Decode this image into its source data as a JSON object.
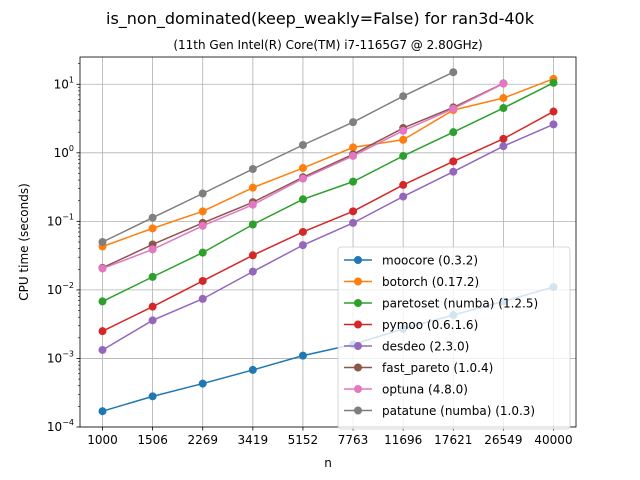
{
  "chart_data": {
    "type": "line",
    "title": "is_non_dominated(keep_weakly=False) for ran3d-40k",
    "subtitle": "(11th Gen Intel(R) Core(TM) i7-1165G7 @ 2.80GHz)",
    "xlabel": "n",
    "ylabel": "CPU time (seconds)",
    "yscale": "log",
    "ylim": [
      0.0001,
      25
    ],
    "y_ticks": [
      {
        "value": 0.0001,
        "base": "10",
        "exp": "−4"
      },
      {
        "value": 0.001,
        "base": "10",
        "exp": "−3"
      },
      {
        "value": 0.01,
        "base": "10",
        "exp": "−2"
      },
      {
        "value": 0.1,
        "base": "10",
        "exp": "−1"
      },
      {
        "value": 1,
        "base": "10",
        "exp": "0"
      },
      {
        "value": 10,
        "base": "10",
        "exp": "1"
      }
    ],
    "categories": [
      "1000",
      "1506",
      "2269",
      "3419",
      "5152",
      "7763",
      "11696",
      "17621",
      "26549",
      "40000"
    ],
    "grid": true,
    "legend_position": "lower right",
    "series": [
      {
        "name": "moocore (0.3.2)",
        "color": "#1f77b4",
        "values": [
          0.00017,
          0.00028,
          0.00043,
          0.00068,
          0.0011,
          0.0016,
          0.0027,
          0.0043,
          0.0068,
          0.011
        ]
      },
      {
        "name": "botorch (0.17.2)",
        "color": "#ff7f0e",
        "values": [
          0.043,
          0.079,
          0.14,
          0.31,
          0.6,
          1.2,
          1.55,
          4.2,
          6.3,
          12
        ]
      },
      {
        "name": "paretoset (numba) (1.2.5)",
        "color": "#2ca02c",
        "values": [
          0.0068,
          0.0155,
          0.035,
          0.09,
          0.21,
          0.38,
          0.9,
          2.0,
          4.5,
          10.5
        ]
      },
      {
        "name": "pymoo (0.6.1.6)",
        "color": "#d62728",
        "values": [
          0.0025,
          0.0057,
          0.0135,
          0.032,
          0.07,
          0.14,
          0.34,
          0.75,
          1.6,
          4.0
        ]
      },
      {
        "name": "desdeo (2.3.0)",
        "color": "#9467bd",
        "values": [
          0.00133,
          0.0036,
          0.0074,
          0.0185,
          0.045,
          0.095,
          0.23,
          0.53,
          1.25,
          2.6
        ]
      },
      {
        "name": "fast_pareto (1.0.4)",
        "color": "#8c564b",
        "values": [
          0.021,
          0.046,
          0.095,
          0.19,
          0.44,
          0.95,
          2.3,
          4.6,
          10.3,
          null
        ]
      },
      {
        "name": "optuna (4.8.0)",
        "color": "#e377c2",
        "values": [
          0.0205,
          0.039,
          0.086,
          0.175,
          0.42,
          0.9,
          2.1,
          4.4,
          10.2,
          null
        ]
      },
      {
        "name": "patatune (numba) (1.0.3)",
        "color": "#7f7f7f",
        "values": [
          0.05,
          0.113,
          0.255,
          0.58,
          1.3,
          2.8,
          6.7,
          15,
          null,
          null
        ]
      }
    ]
  }
}
